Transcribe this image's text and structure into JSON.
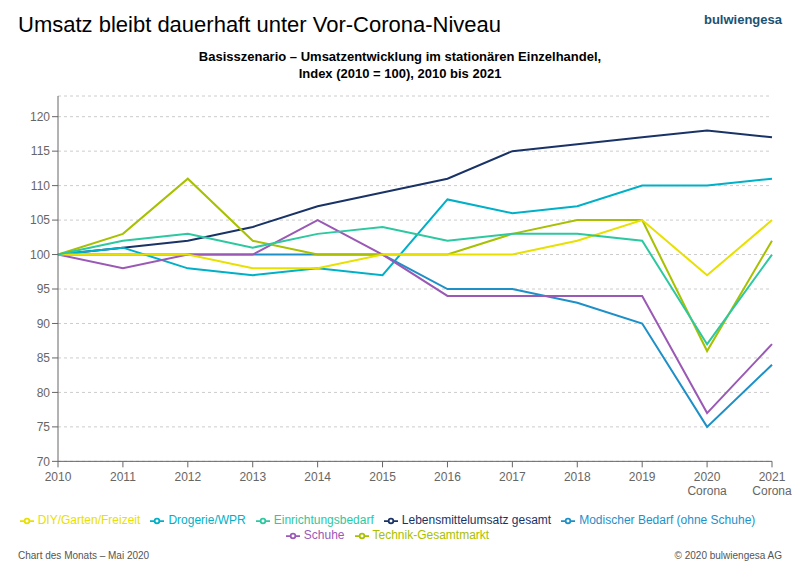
{
  "chart_data": {
    "type": "line",
    "title": "Umsatz bleibt dauerhaft unter Vor-Corona-Niveau",
    "subtitle": "Basisszenario – Umsatzentwicklung im stationären Einzelhandel,\nIndex (2010 = 100), 2010 bis 2021",
    "annotations": [
      "bulwiengesa",
      "Chart des Monats – Mai 2020",
      "© 2020 bulwiengesa AG"
    ],
    "categories": [
      "2010",
      "2011",
      "2012",
      "2013",
      "2014",
      "2015",
      "2016",
      "2017",
      "2018",
      "2019",
      "2020\nCorona",
      "2021\nCorona"
    ],
    "series": [
      {
        "name": "Lebensmittelumsatz gesamt",
        "color": "#1a3366",
        "values": [
          100,
          101,
          102,
          104,
          107,
          109,
          111,
          115,
          116,
          117,
          118,
          117
        ]
      },
      {
        "name": "Drogerie/WPR",
        "color": "#00b0c8",
        "values": [
          100,
          101,
          98,
          97,
          98,
          97,
          108,
          106,
          107,
          110,
          110,
          111
        ]
      },
      {
        "name": "Modischer Bedarf (ohne Schuhe)",
        "color": "#1e90c8",
        "values": [
          100,
          100,
          100,
          100,
          100,
          100,
          95,
          95,
          93,
          90,
          75,
          84
        ]
      },
      {
        "name": "Schuhe",
        "color": "#9b59b6",
        "values": [
          100,
          98,
          100,
          100,
          105,
          100,
          94,
          94,
          94,
          94,
          77,
          87
        ]
      },
      {
        "name": "Technik-Gesamtmarkt",
        "color": "#a8c000",
        "values": [
          100,
          103,
          111,
          102,
          100,
          100,
          100,
          103,
          105,
          105,
          86,
          102
        ]
      },
      {
        "name": "DIY/Garten/Freizeit",
        "color": "#e8e000",
        "values": [
          100,
          100,
          100,
          98,
          98,
          100,
          100,
          100,
          102,
          105,
          97,
          105
        ]
      },
      {
        "name": "Einrichtungsbedarf",
        "color": "#2dc8a0",
        "values": [
          100,
          102,
          103,
          101,
          103,
          104,
          102,
          103,
          103,
          102,
          87,
          100
        ]
      }
    ],
    "ylim": [
      70,
      123
    ],
    "yticks": [
      70,
      75,
      80,
      85,
      90,
      95,
      100,
      105,
      110,
      115,
      120
    ],
    "grid": true,
    "legend": "bottom"
  }
}
